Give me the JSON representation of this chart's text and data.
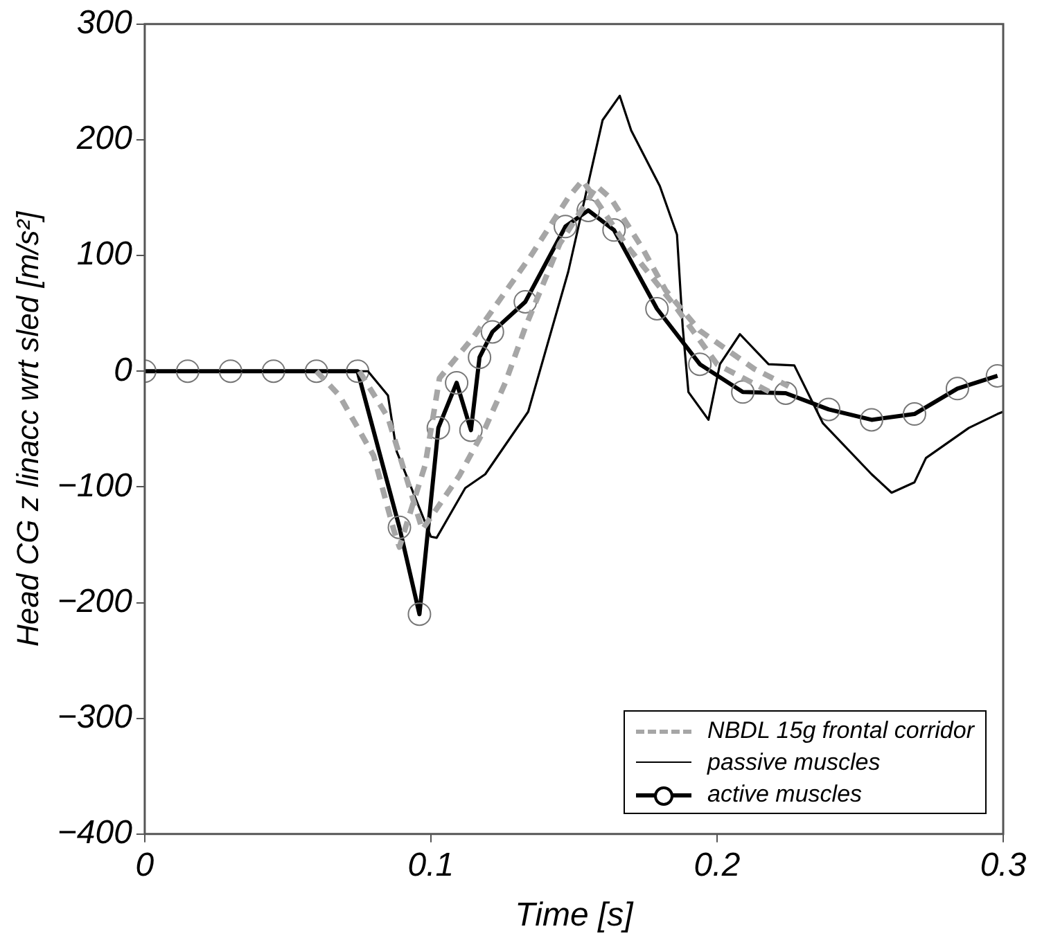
{
  "chart_data": {
    "type": "line",
    "xlabel": "Time [s]",
    "ylabel": "Head CG z linacc wrt sled [m/s²]",
    "xlim": [
      0,
      0.3
    ],
    "xticks": [
      0,
      0.1,
      0.2,
      0.3
    ],
    "ylim": [
      -400,
      300
    ],
    "yticks": [
      -400,
      -300,
      -200,
      -100,
      0,
      100,
      200,
      300
    ],
    "grid": false,
    "legend": "bottom right",
    "series": [
      {
        "name": "NBDL 15g frontal corridor",
        "color": "#a6a6a6",
        "line_style": "dashed",
        "marker": "none",
        "x": [
          0.06,
          0.068,
          0.08,
          0.087,
          0.089,
          0.098,
          0.103,
          0.115,
          0.135,
          0.148,
          0.153,
          0.168,
          0.186,
          0.2,
          0.22
        ],
        "values": [
          0,
          -21,
          -73,
          -137,
          -152,
          -81,
          -6,
          30,
          100,
          150,
          165,
          110,
          54,
          6,
          -20
        ]
      },
      {
        "color": "#a6a6a6",
        "line_style": "dashed",
        "marker": "none",
        "x": [
          0.075,
          0.085,
          0.097,
          0.11,
          0.119,
          0.126,
          0.133,
          0.145,
          0.158,
          0.163,
          0.174,
          0.182,
          0.194,
          0.213,
          0.225
        ],
        "values": [
          0,
          -40,
          -137,
          -90,
          -49,
          -10,
          38,
          110,
          160,
          149,
          106,
          70,
          35,
          2,
          -13
        ]
      },
      {
        "name": "passive muscles",
        "color": "#000000",
        "line_style": "solid",
        "marker": "none",
        "x": [
          0,
          0.078,
          0.085,
          0.088,
          0.1,
          0.102,
          0.112,
          0.119,
          0.134,
          0.148,
          0.16,
          0.166,
          0.17,
          0.18,
          0.186,
          0.188,
          0.19,
          0.197,
          0.201,
          0.208,
          0.218,
          0.227,
          0.237,
          0.254,
          0.261,
          0.269,
          0.273,
          0.288,
          0.298,
          0.3
        ],
        "values": [
          0,
          0,
          -21,
          -69,
          -143,
          -144,
          -101,
          -89,
          -35,
          86,
          217,
          238,
          208,
          160,
          118,
          38,
          -18,
          -42,
          6,
          32,
          6,
          5,
          -45,
          -89,
          -105,
          -96,
          -75,
          -49,
          -37,
          -35
        ]
      },
      {
        "name": "active muscles",
        "color": "#000000",
        "line_style": "solid",
        "marker": "circle",
        "x": [
          0,
          0.015,
          0.03,
          0.045,
          0.06,
          0.0744,
          0.089,
          0.096,
          0.1026,
          0.109,
          0.114,
          0.117,
          0.1215,
          0.133,
          0.147,
          0.155,
          0.164,
          0.179,
          0.194,
          0.209,
          0.224,
          0.239,
          0.254,
          0.269,
          0.284,
          0.298
        ],
        "values": [
          0,
          0,
          0,
          0,
          0,
          0,
          -135,
          -210,
          -49,
          -10,
          -51,
          12,
          34,
          60,
          125,
          139,
          122,
          54,
          6,
          -18,
          -19,
          -33,
          -42,
          -37,
          -15,
          -4
        ]
      }
    ]
  }
}
